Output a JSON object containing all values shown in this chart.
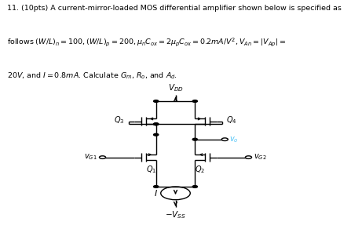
{
  "bg_color": "#ffffff",
  "line_color": "#000000",
  "label_color_vout": "#4FC3F7",
  "fig_width": 4.47,
  "fig_height": 3.06,
  "dpi": 100,
  "text_line1": "11. (10pts) A current-mirror-loaded MOS differential amplifier shown below is specified as",
  "text_line2": "follows $(W/L)_n = 100, (W/L)_p = 200, \\mu_n C_{ox} = 2\\mu_p C_{ox} = 0.2mA/V^2, V_{An} = |V_{Ap}| =$",
  "text_line3": "$20V$, and $I = 0.8mA$. Calculate $G_m$, $R_o$, and $A_d$."
}
